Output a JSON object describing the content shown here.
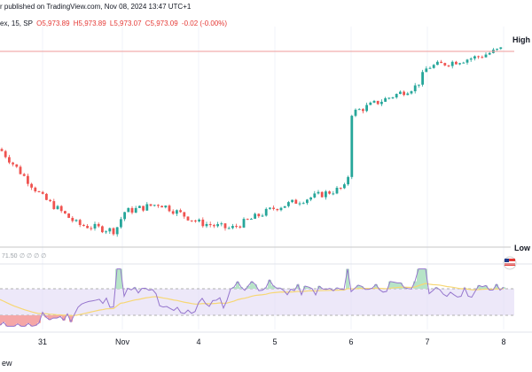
{
  "header": {
    "published": "r published on TradingView.com, Nov 08, 2024 13:47 UTC+1",
    "symbol": "ex, 15, SP",
    "open": "O5,973.89",
    "high": "H5,973.89",
    "low": "L5,973.07",
    "close": "C5,973.09",
    "change": "-0.02 (-0.00%)"
  },
  "labels": {
    "high": "High",
    "low": "Low",
    "rsi_header": "71.50",
    "rsi_dots": "∅ ∅ ∅ ∅",
    "footer": "ew"
  },
  "colors": {
    "up": "#26a69a",
    "down": "#ef5350",
    "rsi": "#9575cd",
    "ma": "#f7d774",
    "band": "#e1d8f5",
    "overbought_fill": "#b7e4c7",
    "oversold_fill": "#f5a7a7"
  },
  "chart_data": {
    "type": "candlestick",
    "x_ticks": [
      "31",
      "Nov",
      "4",
      "5",
      "6",
      "7",
      "8"
    ],
    "price_annotations": [
      "High",
      "Low"
    ],
    "price_path": [
      {
        "x": "30 late",
        "close_level": 0.48
      },
      {
        "x": "31 open",
        "close_level": 0.25
      },
      {
        "x": "31 mid",
        "close_level": 0.12
      },
      {
        "x": "31 close",
        "close_level": 0.09
      },
      {
        "x": "Nov open",
        "close_level": 0.18
      },
      {
        "x": "Nov mid",
        "close_level": 0.22
      },
      {
        "x": "4 open",
        "close_level": 0.13
      },
      {
        "x": "4 mid",
        "close_level": 0.1
      },
      {
        "x": "5 open",
        "close_level": 0.2
      },
      {
        "x": "5 close",
        "close_level": 0.3
      },
      {
        "x": "6 open",
        "close_level": 0.65
      },
      {
        "x": "6 close",
        "close_level": 0.78
      },
      {
        "x": "7 open",
        "close_level": 0.87
      },
      {
        "x": "7 close",
        "close_level": 0.92
      },
      {
        "x": "8",
        "close_level": 0.96
      }
    ],
    "rsi": {
      "header_value": "71.50",
      "upper_band": 70,
      "lower_band": 30
    }
  }
}
